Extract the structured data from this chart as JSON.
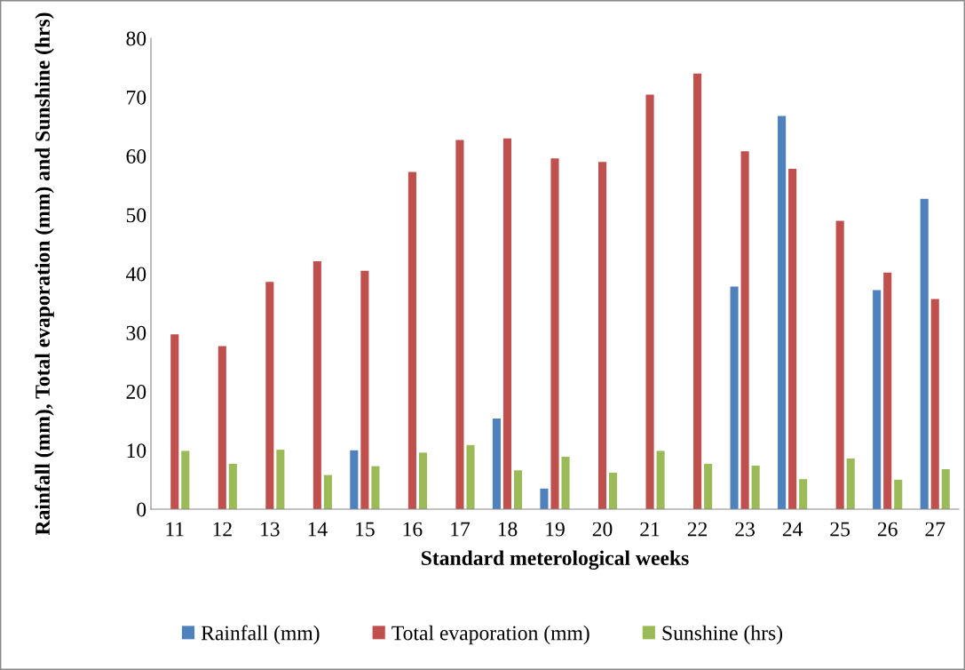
{
  "chart_data": {
    "type": "bar",
    "xlabel": "Standard meterological weeks",
    "ylabel": "Rainfall (mm), Total evaporation (mm) and Sunshine (hrs)",
    "categories": [
      "11",
      "12",
      "13",
      "14",
      "15",
      "16",
      "17",
      "18",
      "19",
      "20",
      "21",
      "22",
      "23",
      "24",
      "25",
      "26",
      "27"
    ],
    "series": [
      {
        "name": "Rainfall (mm)",
        "color": "#4f81bd",
        "values": [
          0,
          0,
          0,
          0,
          10.0,
          0,
          0,
          15.4,
          3.5,
          0,
          0,
          0,
          37.8,
          66.8,
          0,
          37.2,
          52.7
        ]
      },
      {
        "name": "Total evaporation (mm)",
        "color": "#c0504d",
        "values": [
          29.7,
          27.7,
          38.6,
          42.1,
          40.5,
          57.3,
          62.7,
          63.0,
          59.6,
          59.0,
          70.4,
          74.0,
          60.8,
          57.8,
          49.0,
          40.2,
          35.7
        ]
      },
      {
        "name": "Sunshine (hrs)",
        "color": "#9bbb59",
        "values": [
          9.9,
          7.7,
          10.1,
          5.8,
          7.3,
          9.6,
          10.9,
          6.6,
          8.9,
          6.2,
          9.9,
          7.7,
          7.4,
          5.1,
          8.6,
          5.0,
          6.8
        ]
      }
    ],
    "ylim": [
      0,
      80
    ],
    "yticks": [
      0,
      10,
      20,
      30,
      40,
      50,
      60,
      70,
      80
    ],
    "grid": false,
    "legend": "bottom"
  }
}
